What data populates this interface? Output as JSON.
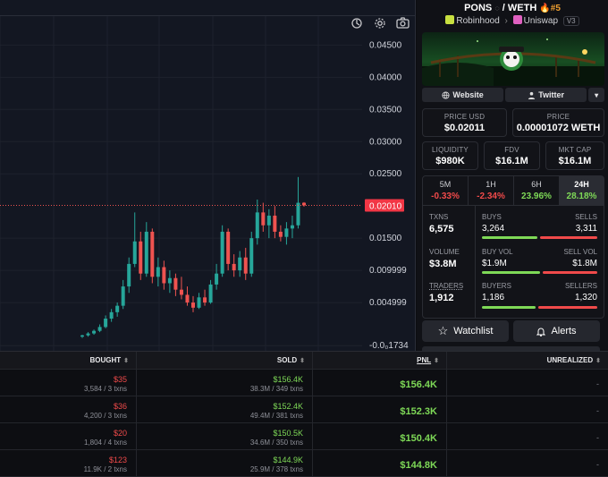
{
  "toolbar": {
    "icons": [
      "indicator-icon",
      "gear-icon",
      "camera-icon"
    ]
  },
  "chart_data": {
    "type": "candlestick",
    "y_ticks": [
      "0.04500",
      "0.04000",
      "0.03500",
      "0.03000",
      "0.02500",
      "0.01500",
      "0.009999",
      "0.004999",
      "-0.0₀1734"
    ],
    "current_price_label": "0.02010",
    "current_price": 0.0201,
    "ylim": [
      -0.0025,
      0.0495
    ],
    "candles": [
      {
        "o": -0.0003,
        "h": 0.0,
        "l": -0.0005,
        "c": -0.0001
      },
      {
        "o": -0.0001,
        "h": 0.0004,
        "l": -0.0003,
        "c": 0.0002
      },
      {
        "o": 0.0002,
        "h": 0.0008,
        "l": 0.0,
        "c": 0.0006
      },
      {
        "o": 0.0006,
        "h": 0.0016,
        "l": 0.0004,
        "c": 0.0012
      },
      {
        "o": 0.0012,
        "h": 0.003,
        "l": 0.001,
        "c": 0.0025
      },
      {
        "o": 0.0025,
        "h": 0.004,
        "l": 0.002,
        "c": 0.0035
      },
      {
        "o": 0.0035,
        "h": 0.005,
        "l": 0.0028,
        "c": 0.0045
      },
      {
        "o": 0.0045,
        "h": 0.0085,
        "l": 0.004,
        "c": 0.0075
      },
      {
        "o": 0.0075,
        "h": 0.012,
        "l": 0.0065,
        "c": 0.011
      },
      {
        "o": 0.011,
        "h": 0.019,
        "l": 0.0105,
        "c": 0.0145
      },
      {
        "o": 0.0145,
        "h": 0.016,
        "l": 0.0085,
        "c": 0.0095
      },
      {
        "o": 0.0095,
        "h": 0.0175,
        "l": 0.009,
        "c": 0.016
      },
      {
        "o": 0.016,
        "h": 0.0165,
        "l": 0.008,
        "c": 0.009
      },
      {
        "o": 0.009,
        "h": 0.012,
        "l": 0.0075,
        "c": 0.0105
      },
      {
        "o": 0.0105,
        "h": 0.0115,
        "l": 0.007,
        "c": 0.008
      },
      {
        "o": 0.008,
        "h": 0.01,
        "l": 0.0065,
        "c": 0.0088
      },
      {
        "o": 0.0088,
        "h": 0.0095,
        "l": 0.006,
        "c": 0.007
      },
      {
        "o": 0.007,
        "h": 0.009,
        "l": 0.0055,
        "c": 0.0062
      },
      {
        "o": 0.0062,
        "h": 0.0075,
        "l": 0.0045,
        "c": 0.005
      },
      {
        "o": 0.005,
        "h": 0.006,
        "l": 0.0035,
        "c": 0.0042
      },
      {
        "o": 0.0042,
        "h": 0.0065,
        "l": 0.004,
        "c": 0.0058
      },
      {
        "o": 0.0058,
        "h": 0.007,
        "l": 0.0045,
        "c": 0.005
      },
      {
        "o": 0.005,
        "h": 0.0085,
        "l": 0.0048,
        "c": 0.0078
      },
      {
        "o": 0.0078,
        "h": 0.011,
        "l": 0.007,
        "c": 0.0095
      },
      {
        "o": 0.0095,
        "h": 0.017,
        "l": 0.009,
        "c": 0.016
      },
      {
        "o": 0.016,
        "h": 0.0165,
        "l": 0.01,
        "c": 0.011
      },
      {
        "o": 0.011,
        "h": 0.0125,
        "l": 0.009,
        "c": 0.01
      },
      {
        "o": 0.01,
        "h": 0.013,
        "l": 0.009,
        "c": 0.012
      },
      {
        "o": 0.012,
        "h": 0.0135,
        "l": 0.0085,
        "c": 0.0095
      },
      {
        "o": 0.0095,
        "h": 0.016,
        "l": 0.009,
        "c": 0.015
      },
      {
        "o": 0.015,
        "h": 0.021,
        "l": 0.014,
        "c": 0.019
      },
      {
        "o": 0.019,
        "h": 0.0205,
        "l": 0.016,
        "c": 0.017
      },
      {
        "o": 0.017,
        "h": 0.0195,
        "l": 0.015,
        "c": 0.0185
      },
      {
        "o": 0.0185,
        "h": 0.02,
        "l": 0.015,
        "c": 0.016
      },
      {
        "o": 0.016,
        "h": 0.017,
        "l": 0.0145,
        "c": 0.0152
      },
      {
        "o": 0.0152,
        "h": 0.0175,
        "l": 0.014,
        "c": 0.0165
      },
      {
        "o": 0.0165,
        "h": 0.0185,
        "l": 0.015,
        "c": 0.017
      },
      {
        "o": 0.017,
        "h": 0.0245,
        "l": 0.0165,
        "c": 0.0205
      },
      {
        "o": 0.0205,
        "h": 0.0206,
        "l": 0.0199,
        "c": 0.0201
      }
    ],
    "up_color": "#26a69a",
    "down_color": "#ef5350"
  },
  "token": {
    "name": "PONS",
    "quote": "WETH",
    "rank": "#5",
    "chain": "Robinhood",
    "dex": "Uniswap",
    "version": "V3"
  },
  "links": {
    "website": "Website",
    "twitter": "Twitter"
  },
  "stats": {
    "price_usd_label": "PRICE USD",
    "price_usd": "$0.02011",
    "price_label": "PRICE",
    "price": "0.00001072 WETH",
    "liquidity_label": "LIQUIDITY",
    "liquidity": "$980K",
    "fdv_label": "FDV",
    "fdv": "$16.1M",
    "mktcap_label": "MKT CAP",
    "mktcap": "$16.1M"
  },
  "periods": [
    {
      "label": "5M",
      "value": "-0.33%",
      "dir": "down"
    },
    {
      "label": "1H",
      "value": "-2.34%",
      "dir": "down"
    },
    {
      "label": "6H",
      "value": "23.96%",
      "dir": "up"
    },
    {
      "label": "24H",
      "value": "28.18%",
      "dir": "up"
    }
  ],
  "activity": {
    "txns_label": "TXNS",
    "txns": "6,575",
    "buys_label": "BUYS",
    "buys": "3,264",
    "sells_label": "SELLS",
    "sells": "3,311",
    "volume_label": "VOLUME",
    "volume": "$3.8M",
    "buyvol_label": "BUY VOL",
    "buyvol": "$1.9M",
    "sellvol_label": "SELL VOL",
    "sellvol": "$1.8M",
    "traders_label": "TRADERS",
    "traders": "1,912",
    "buyers_label": "BUYERS",
    "buyers": "1,186",
    "sellers_label": "SELLERS",
    "sellers": "1,320",
    "buy_ratio_txns": 0.496,
    "buy_ratio_vol": 0.514,
    "buy_ratio_traders": 0.473
  },
  "actions": {
    "watchlist": "Watchlist",
    "alerts": "Alerts"
  },
  "table": {
    "headers": {
      "bought": "BOUGHT",
      "sold": "SOLD",
      "pnl": "PNL",
      "unrealized": "UNREALIZED"
    },
    "rows": [
      {
        "bought": "$35",
        "bought_sub": "3,584 / 3 txns",
        "sold": "$156.4K",
        "sold_sub": "38.3M / 349 txns",
        "pnl": "$156.4K",
        "unrealized": "-"
      },
      {
        "bought": "$36",
        "bought_sub": "4,200 / 3 txns",
        "sold": "$152.4K",
        "sold_sub": "49.4M / 381 txns",
        "pnl": "$152.3K",
        "unrealized": "-"
      },
      {
        "bought": "$20",
        "bought_sub": "1,804 / 4 txns",
        "sold": "$150.5K",
        "sold_sub": "34.6M / 350 txns",
        "pnl": "$150.4K",
        "unrealized": "-"
      },
      {
        "bought": "$123",
        "bought_sub": "11.9K / 2 txns",
        "sold": "$144.9K",
        "sold_sub": "25.9M / 378 txns",
        "pnl": "$144.8K",
        "unrealized": "-"
      }
    ]
  }
}
